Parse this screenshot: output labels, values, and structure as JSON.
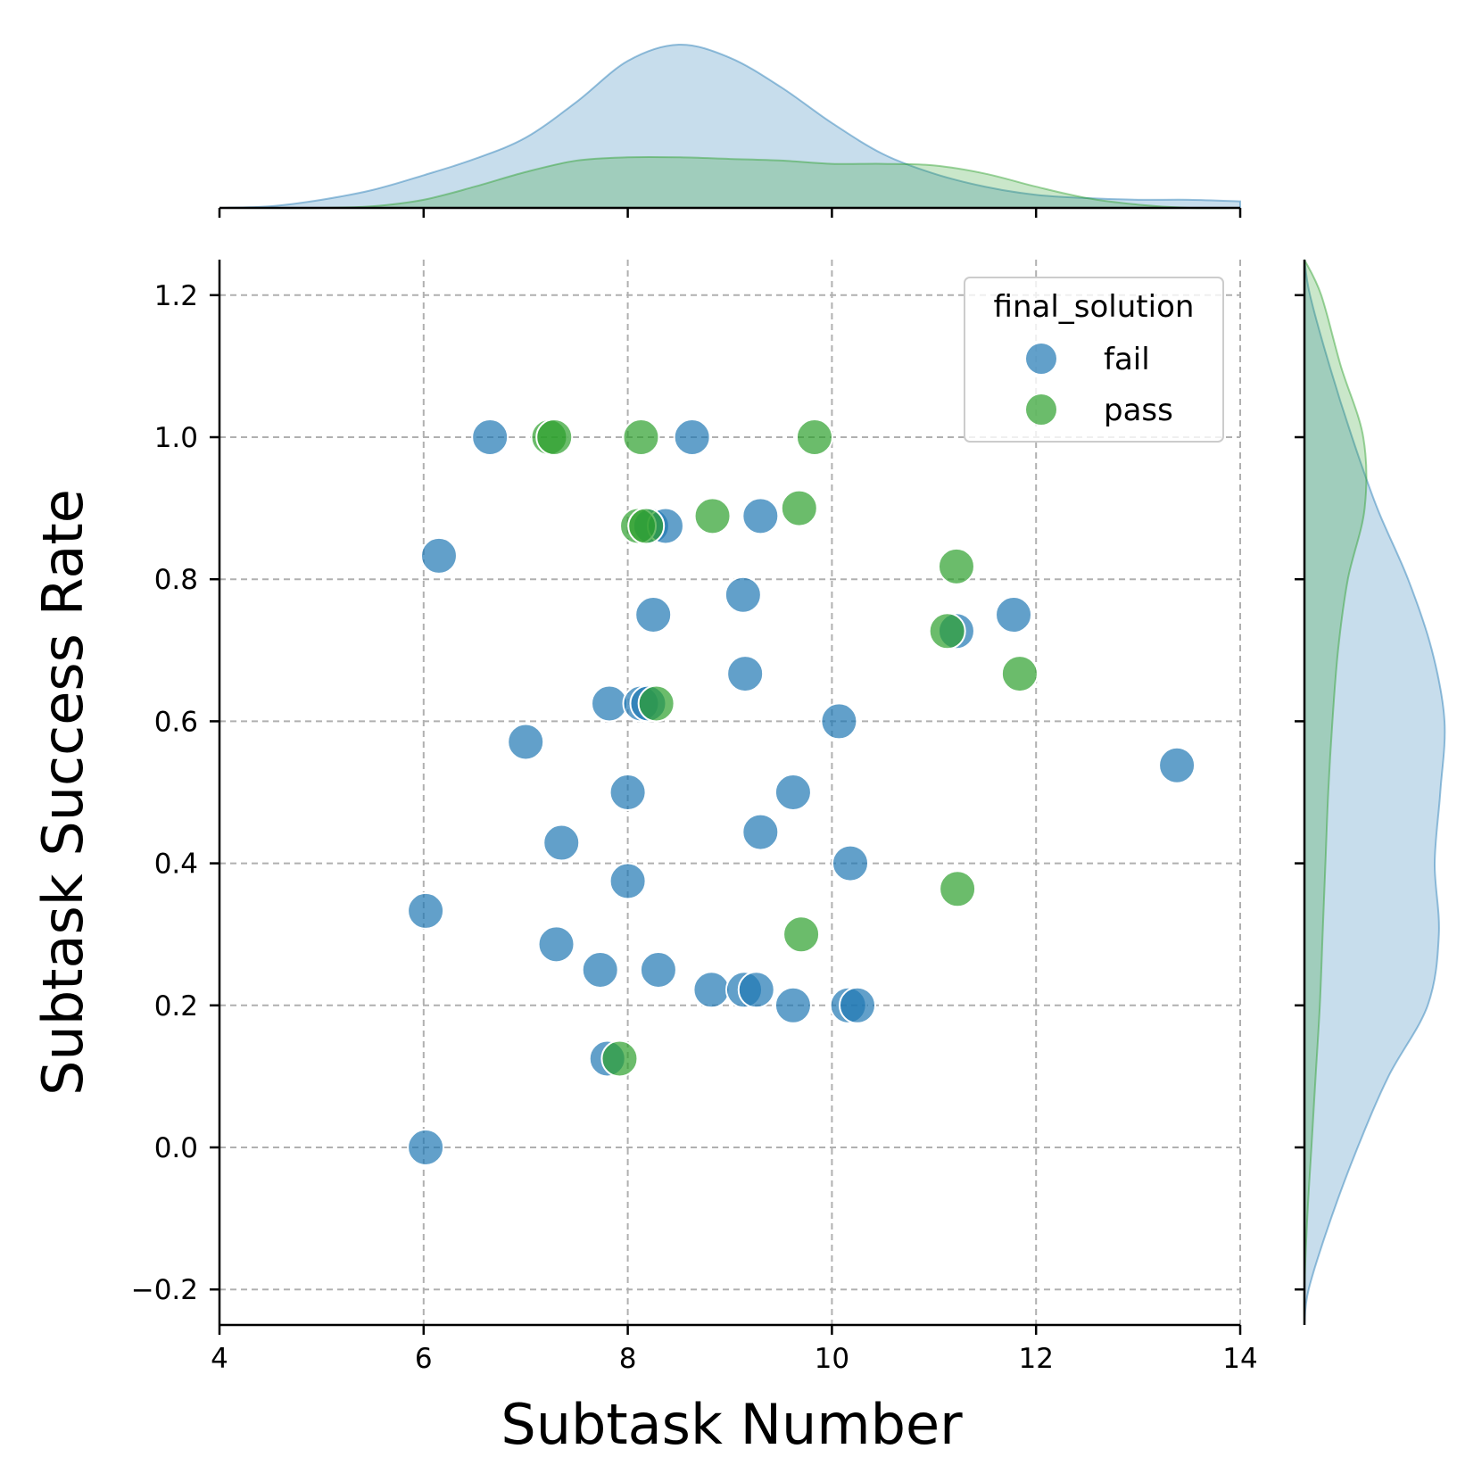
{
  "chart_data": {
    "type": "scatter",
    "subtype": "jointplot",
    "xlabel": "Subtask Number",
    "ylabel": "Subtask Success Rate",
    "xlim": [
      4,
      14
    ],
    "ylim": [
      -0.25,
      1.25
    ],
    "x_ticks": [
      4,
      6,
      8,
      10,
      12,
      14
    ],
    "y_ticks": [
      -0.2,
      0.0,
      0.2,
      0.4,
      0.6,
      0.8,
      1.0,
      1.2
    ],
    "x_tick_labels": [
      "4",
      "6",
      "8",
      "10",
      "12",
      "14"
    ],
    "y_tick_labels": [
      "−0.2",
      "0.0",
      "0.2",
      "0.4",
      "0.6",
      "0.8",
      "1.0",
      "1.2"
    ],
    "grid": true,
    "legend": {
      "title": "final_solution",
      "placement": "top-right",
      "entries": [
        "fail",
        "pass"
      ]
    },
    "series": [
      {
        "name": "fail",
        "color": "#1f77b4",
        "points": [
          [
            6.65,
            1.0
          ],
          [
            8.63,
            1.0
          ],
          [
            8.23,
            0.875
          ],
          [
            8.37,
            0.875
          ],
          [
            9.3,
            0.889
          ],
          [
            6.15,
            0.833
          ],
          [
            9.13,
            0.778
          ],
          [
            8.25,
            0.75
          ],
          [
            11.22,
            0.727
          ],
          [
            11.78,
            0.75
          ],
          [
            9.15,
            0.667
          ],
          [
            7.82,
            0.625
          ],
          [
            8.13,
            0.625
          ],
          [
            8.2,
            0.625
          ],
          [
            10.07,
            0.6
          ],
          [
            7.0,
            0.571
          ],
          [
            13.38,
            0.538
          ],
          [
            8.0,
            0.5
          ],
          [
            9.62,
            0.5
          ],
          [
            7.35,
            0.429
          ],
          [
            9.3,
            0.444
          ],
          [
            10.18,
            0.4
          ],
          [
            8.0,
            0.375
          ],
          [
            6.02,
            0.333
          ],
          [
            7.3,
            0.286
          ],
          [
            7.73,
            0.25
          ],
          [
            8.3,
            0.25
          ],
          [
            8.82,
            0.222
          ],
          [
            9.14,
            0.222
          ],
          [
            9.26,
            0.222
          ],
          [
            9.62,
            0.2
          ],
          [
            10.16,
            0.2
          ],
          [
            10.25,
            0.2
          ],
          [
            7.8,
            0.125
          ],
          [
            6.02,
            0.0
          ]
        ]
      },
      {
        "name": "pass",
        "color": "#2ca02c",
        "points": [
          [
            7.23,
            1.0
          ],
          [
            7.28,
            1.0
          ],
          [
            8.13,
            1.0
          ],
          [
            9.83,
            1.0
          ],
          [
            8.1,
            0.875
          ],
          [
            8.18,
            0.875
          ],
          [
            8.83,
            0.889
          ],
          [
            9.68,
            0.9
          ],
          [
            11.22,
            0.818
          ],
          [
            11.13,
            0.727
          ],
          [
            11.84,
            0.667
          ],
          [
            8.28,
            0.625
          ],
          [
            9.7,
            0.3
          ],
          [
            11.23,
            0.364
          ],
          [
            7.92,
            0.125
          ]
        ]
      }
    ],
    "marginal_x_density": {
      "x": [
        4.0,
        4.5,
        5.0,
        5.5,
        6.0,
        6.5,
        7.0,
        7.5,
        8.0,
        8.5,
        9.0,
        9.5,
        10.0,
        10.5,
        11.0,
        11.5,
        12.0,
        12.5,
        13.0,
        13.5,
        14.0
      ],
      "fail": [
        0.0,
        0.01,
        0.05,
        0.11,
        0.2,
        0.3,
        0.43,
        0.65,
        0.9,
        1.0,
        0.92,
        0.74,
        0.52,
        0.33,
        0.21,
        0.13,
        0.08,
        0.06,
        0.05,
        0.05,
        0.04
      ],
      "pass": [
        0.0,
        0.0,
        0.0,
        0.01,
        0.05,
        0.13,
        0.22,
        0.29,
        0.31,
        0.31,
        0.3,
        0.29,
        0.27,
        0.27,
        0.26,
        0.21,
        0.13,
        0.06,
        0.02,
        0.0,
        0.0
      ]
    },
    "marginal_y_density": {
      "y": [
        -0.25,
        -0.2,
        -0.1,
        0.0,
        0.1,
        0.2,
        0.3,
        0.4,
        0.5,
        0.6,
        0.7,
        0.8,
        0.9,
        1.0,
        1.1,
        1.2,
        1.25
      ],
      "fail": [
        0.0,
        0.03,
        0.19,
        0.38,
        0.6,
        0.88,
        0.96,
        0.93,
        0.97,
        1.0,
        0.91,
        0.74,
        0.52,
        0.34,
        0.18,
        0.04,
        0.0
      ],
      "pass": [
        0.0,
        0.0,
        0.02,
        0.05,
        0.08,
        0.11,
        0.13,
        0.15,
        0.17,
        0.2,
        0.24,
        0.31,
        0.43,
        0.42,
        0.26,
        0.12,
        0.0
      ]
    }
  }
}
